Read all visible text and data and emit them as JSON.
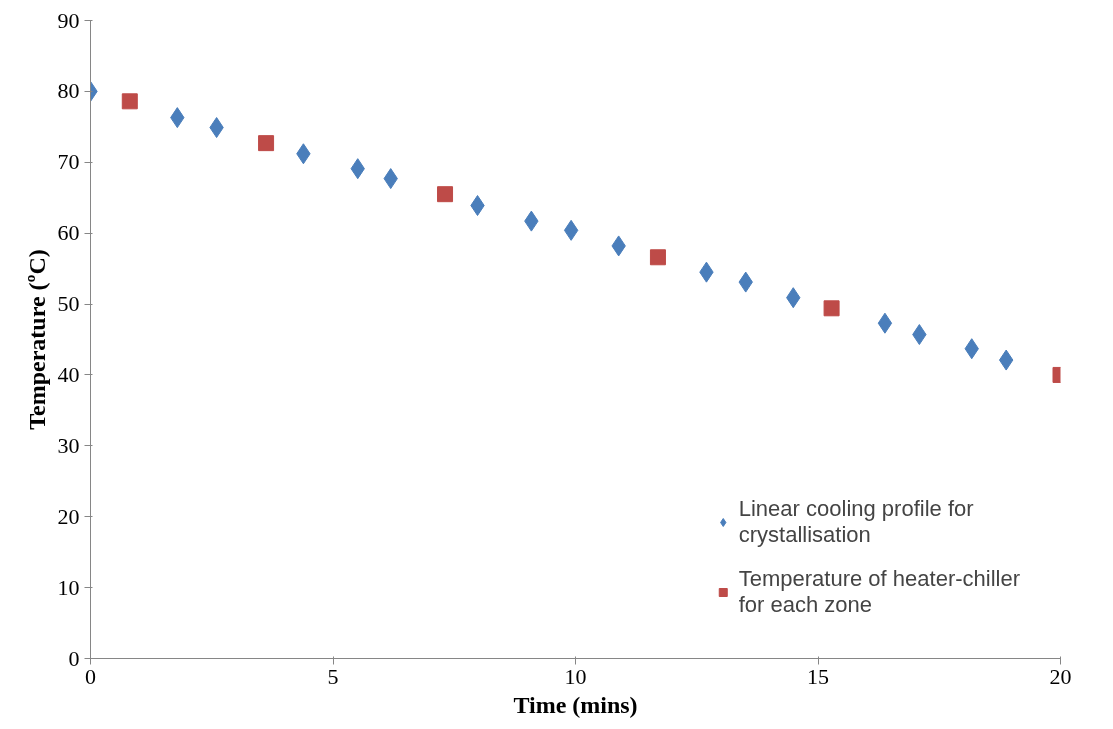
{
  "chart_data": {
    "type": "scatter",
    "xlabel": "Time (mins)",
    "ylabel": "Temperature (ºC)",
    "xlim": [
      0,
      20
    ],
    "xticks": [
      0,
      5,
      10,
      15,
      20
    ],
    "ylim": [
      0,
      90
    ],
    "yticks": [
      0,
      10,
      20,
      30,
      40,
      50,
      60,
      70,
      80,
      90
    ],
    "grid": false,
    "legend": "right",
    "series": [
      {
        "name": "Linear cooling profile for crystallisation",
        "color": "#4a7ebb",
        "marker": "diamond",
        "x": [
          0,
          1.79,
          2.6,
          4.39,
          5.51,
          6.19,
          7.98,
          9.09,
          9.91,
          10.89,
          12.7,
          13.51,
          14.49,
          16.38,
          17.09,
          18.17,
          18.88
        ],
        "values": [
          80.0,
          76.3,
          74.9,
          71.2,
          69.1,
          67.7,
          63.9,
          61.7,
          60.4,
          58.2,
          54.5,
          53.1,
          50.9,
          47.3,
          45.7,
          43.7,
          42.1
        ]
      },
      {
        "name": "Temperature of heater-chiller for each zone",
        "color": "#be4b48",
        "marker": "square",
        "x": [
          0.81,
          3.62,
          7.31,
          11.7,
          15.28,
          20.0
        ],
        "values": [
          78.6,
          72.7,
          65.5,
          56.6,
          49.4,
          40.0
        ]
      }
    ]
  }
}
